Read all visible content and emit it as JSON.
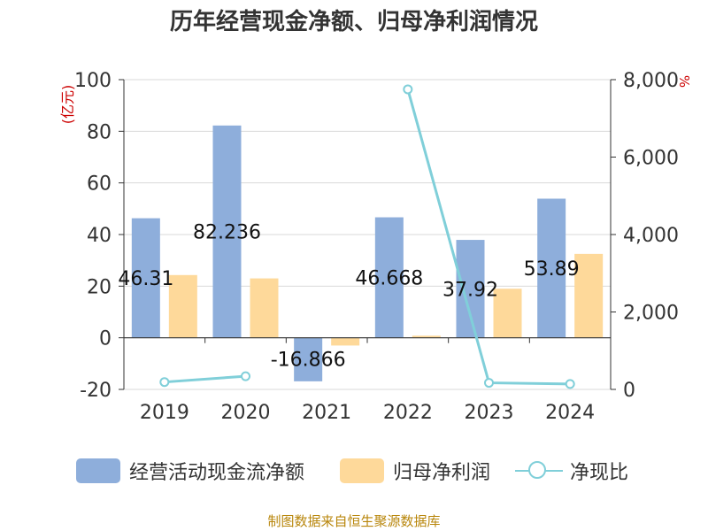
{
  "title": "历年经营现金净额、归母净利润情况",
  "source": "制图数据来自恒生聚源数据库",
  "colors": {
    "cash_flow": "#8eaedb",
    "net_profit": "#fed99a",
    "ratio": "#80cfd9",
    "left_unit": "#cc0000",
    "right_unit": "#cc0000"
  },
  "chart_data": {
    "type": "bar",
    "categories": [
      "2019",
      "2020",
      "2021",
      "2022",
      "2023",
      "2024"
    ],
    "series": [
      {
        "name": "经营活动现金流净额",
        "type": "bar",
        "axis": "left",
        "values": [
          46.31,
          82.236,
          -16.866,
          46.668,
          37.92,
          53.89
        ]
      },
      {
        "name": "归母净利润",
        "type": "bar",
        "axis": "left",
        "values": [
          24.3,
          23.0,
          -3.0,
          0.8,
          19.0,
          32.5
        ]
      },
      {
        "name": "净现比",
        "type": "line",
        "axis": "right",
        "values": [
          190,
          340,
          null,
          7750,
          170,
          140
        ]
      }
    ],
    "data_labels": [
      "46.31",
      "82.236",
      "-16.866",
      "46.668",
      "37.92",
      "53.89"
    ],
    "left_axis": {
      "label": "(亿元)",
      "ticks": [
        "100",
        "80",
        "60",
        "40",
        "20",
        "0",
        "-20"
      ],
      "range": [
        -20,
        100
      ]
    },
    "right_axis": {
      "label": "%",
      "ticks": [
        "8,000",
        "6,000",
        "4,000",
        "2,000",
        "0"
      ],
      "range": [
        0,
        8000
      ]
    },
    "grid": true,
    "legend_position": "bottom"
  }
}
